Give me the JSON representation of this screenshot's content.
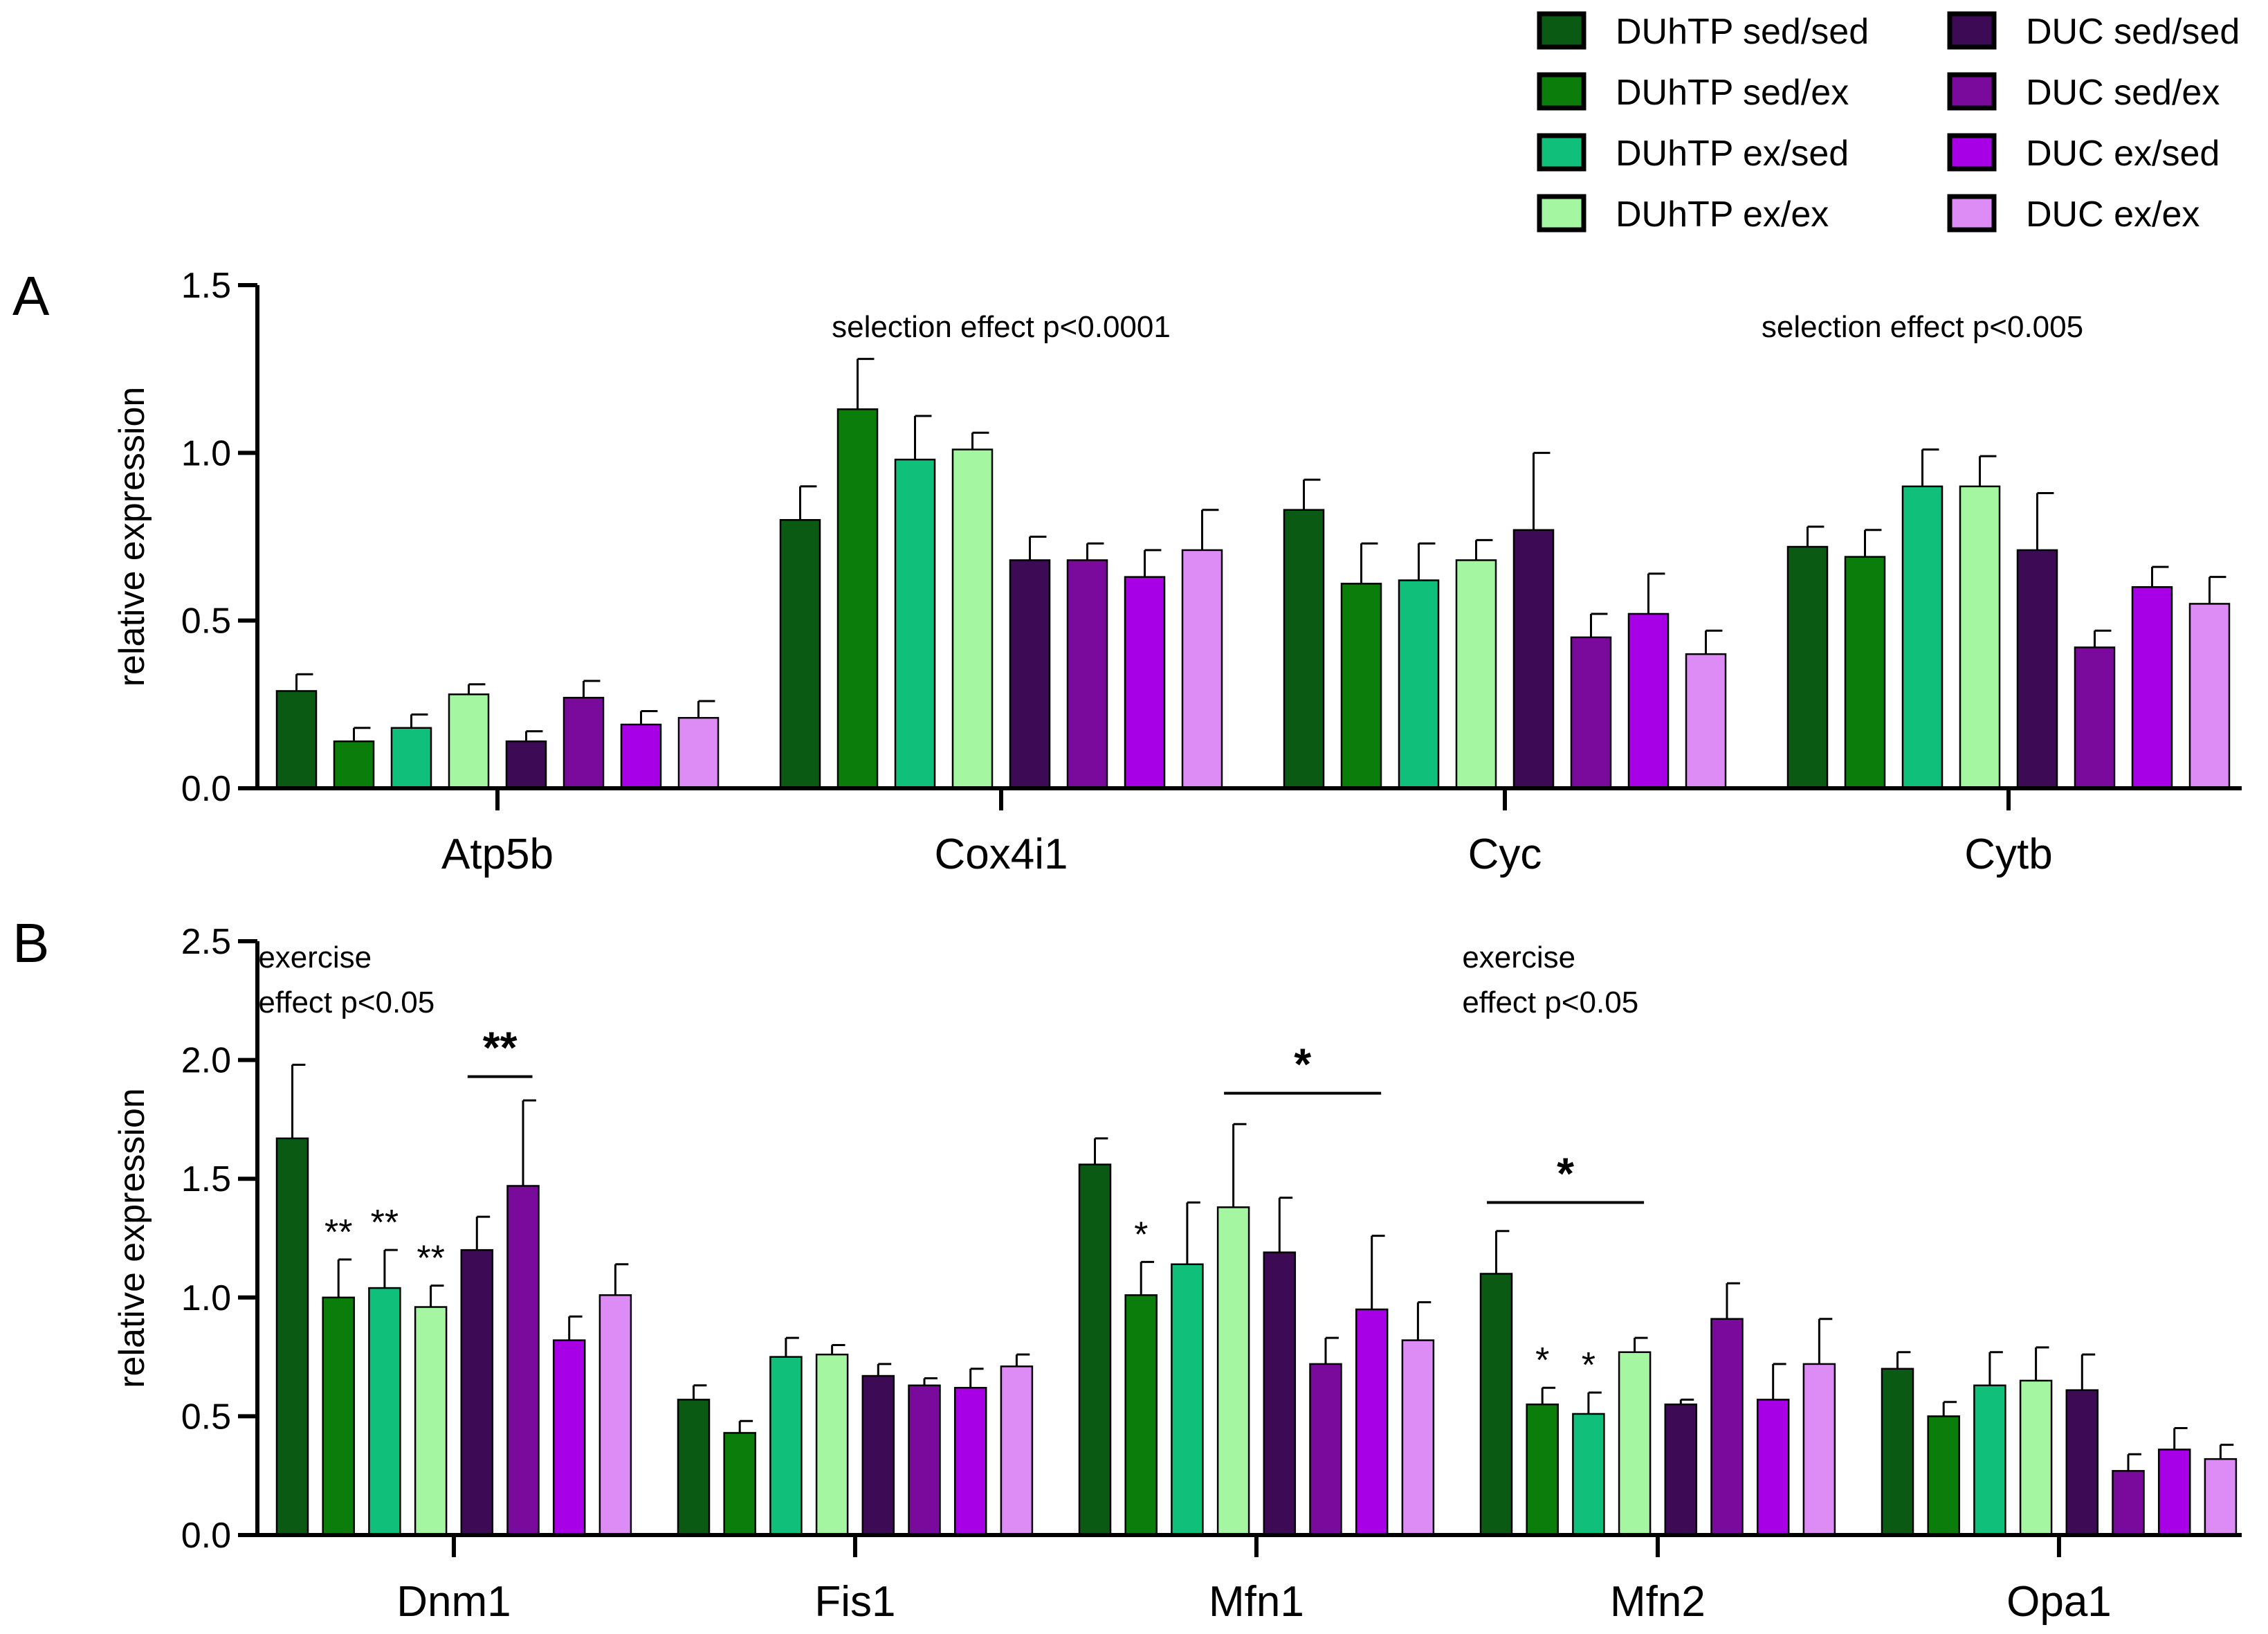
{
  "chart_data": {
    "legend": [
      {
        "name": "DUhTP sed/sed",
        "color": "#0a5a14"
      },
      {
        "name": "DUhTP sed/ex",
        "color": "#0b7d0b"
      },
      {
        "name": "DUhTP ex/sed",
        "color": "#10c07a"
      },
      {
        "name": "DUhTP ex/ex",
        "color": "#a4f7a0"
      },
      {
        "name": "DUC sed/sed",
        "color": "#3d0a55"
      },
      {
        "name": "DUC sed/ex",
        "color": "#7a0a9c"
      },
      {
        "name": "DUC ex/sed",
        "color": "#a800e6"
      },
      {
        "name": "DUC ex/ex",
        "color": "#dd8cf5"
      }
    ],
    "panels": [
      {
        "letter": "A",
        "type": "bar",
        "ylabel": "relative expression",
        "ylim": [
          0,
          1.5
        ],
        "yticks": [
          "0.0",
          "0.5",
          "1.0",
          "1.5"
        ],
        "categories": [
          "Atp5b",
          "Cox4i1",
          "Cyc",
          "Cytb"
        ],
        "values": [
          [
            0.29,
            0.14,
            0.18,
            0.28,
            0.14,
            0.27,
            0.19,
            0.21
          ],
          [
            0.8,
            1.13,
            0.98,
            1.01,
            0.68,
            0.68,
            0.63,
            0.71
          ],
          [
            0.83,
            0.61,
            0.62,
            0.68,
            0.77,
            0.45,
            0.52,
            0.4
          ],
          [
            0.72,
            0.69,
            0.9,
            0.9,
            0.71,
            0.42,
            0.6,
            0.55
          ]
        ],
        "errors": [
          [
            0.05,
            0.04,
            0.04,
            0.03,
            0.03,
            0.05,
            0.04,
            0.05
          ],
          [
            0.1,
            0.15,
            0.13,
            0.05,
            0.07,
            0.05,
            0.08,
            0.12
          ],
          [
            0.09,
            0.12,
            0.11,
            0.06,
            0.23,
            0.07,
            0.12,
            0.07
          ],
          [
            0.06,
            0.08,
            0.11,
            0.09,
            0.17,
            0.05,
            0.06,
            0.08
          ]
        ],
        "annotations": [
          {
            "text": "selection effect p<0.0001",
            "category": 1,
            "group": 3.5
          },
          {
            "text": "selection effect p<0.005",
            "category": 3,
            "group": 2
          }
        ]
      },
      {
        "letter": "B",
        "type": "bar",
        "ylabel": "relative expression",
        "ylim": [
          0,
          2.5
        ],
        "yticks": [
          "0.0",
          "0.5",
          "1.0",
          "1.5",
          "2.0",
          "2.5"
        ],
        "categories": [
          "Dnm1",
          "Fis1",
          "Mfn1",
          "Mfn2",
          "Opa1"
        ],
        "values": [
          [
            1.67,
            1.0,
            1.04,
            0.96,
            1.2,
            1.47,
            0.82,
            1.01
          ],
          [
            0.57,
            0.43,
            0.75,
            0.76,
            0.67,
            0.63,
            0.62,
            0.71
          ],
          [
            1.56,
            1.01,
            1.14,
            1.38,
            1.19,
            0.72,
            0.95,
            0.82
          ],
          [
            1.1,
            0.55,
            0.51,
            0.77,
            0.55,
            0.91,
            0.57,
            0.72
          ],
          [
            0.7,
            0.5,
            0.63,
            0.65,
            0.61,
            0.27,
            0.36,
            0.32
          ]
        ],
        "errors": [
          [
            0.31,
            0.16,
            0.16,
            0.09,
            0.14,
            0.36,
            0.1,
            0.13
          ],
          [
            0.06,
            0.05,
            0.08,
            0.04,
            0.05,
            0.03,
            0.08,
            0.05
          ],
          [
            0.11,
            0.14,
            0.26,
            0.35,
            0.23,
            0.11,
            0.31,
            0.16
          ],
          [
            0.18,
            0.07,
            0.09,
            0.06,
            0.02,
            0.15,
            0.15,
            0.19
          ],
          [
            0.07,
            0.06,
            0.14,
            0.14,
            0.15,
            0.07,
            0.09,
            0.06
          ]
        ],
        "annotations": [
          {
            "text": "exercise",
            "category": 0,
            "group": -0.4,
            "line": 0
          },
          {
            "text": "effect p<0.05",
            "category": 0,
            "group": -0.4,
            "line": 1
          },
          {
            "text": "exercise",
            "category": 3,
            "group": -0.4,
            "line": 0
          },
          {
            "text": "effect p<0.05",
            "category": 3,
            "group": -0.4,
            "line": 1
          }
        ],
        "significance": [
          {
            "text": "**",
            "category": 0,
            "group": 1
          },
          {
            "text": "**",
            "category": 0,
            "group": 2
          },
          {
            "text": "**",
            "category": 0,
            "group": 3
          },
          {
            "text": "*",
            "category": 2,
            "group": 1
          },
          {
            "text": "*",
            "category": 3,
            "group": 1
          },
          {
            "text": "*",
            "category": 3,
            "group": 2
          }
        ],
        "brackets": [
          {
            "text": "**",
            "category": 0,
            "from": 4,
            "to": 5,
            "y": 1.93
          },
          {
            "text": "*",
            "category": 2,
            "from": 3,
            "to": 6,
            "y": 1.86
          },
          {
            "text": "*",
            "category": 3,
            "from": 0,
            "to": 3,
            "y": 1.4
          }
        ]
      }
    ]
  }
}
